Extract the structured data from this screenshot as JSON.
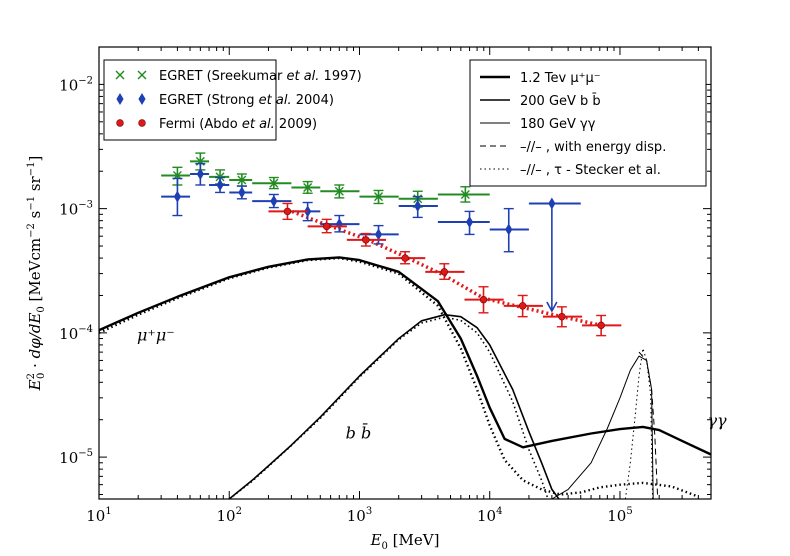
{
  "chart_data": {
    "type": "scatter",
    "title": "",
    "xlabel": "E₀ [MeV]",
    "ylabel": "E₀² · dφ/dE₀ [MeV cm⁻² s⁻¹ sr⁻¹]",
    "x_scale": "log",
    "y_scale": "log",
    "xlim": [
      10,
      500000
    ],
    "ylim": [
      4.6e-06,
      0.02
    ],
    "x_ticks": [
      {
        "value": 10,
        "base": "10",
        "exp": "1"
      },
      {
        "value": 100,
        "base": "10",
        "exp": "2"
      },
      {
        "value": 1000,
        "base": "10",
        "exp": "3"
      },
      {
        "value": 10000,
        "base": "10",
        "exp": "4"
      },
      {
        "value": 100000,
        "base": "10",
        "exp": "5"
      }
    ],
    "y_ticks": [
      {
        "value": 1e-05,
        "base": "10",
        "exp": "−5"
      },
      {
        "value": 0.0001,
        "base": "10",
        "exp": "−4"
      },
      {
        "value": 0.001,
        "base": "10",
        "exp": "−3"
      },
      {
        "value": 0.01,
        "base": "10",
        "exp": "−2"
      }
    ],
    "data_series": [
      {
        "name": "EGRET (Sreekumar et al. 1997)",
        "label_text": "EGRET (Sreekumar ",
        "label_em": "et al.",
        "label_tail": " 1997)",
        "color": "#228b22",
        "marker": "x",
        "points": [
          {
            "x": 40,
            "y": 0.00185,
            "xlo": 30,
            "xhi": 50,
            "ylo": 0.00155,
            "yhi": 0.00215
          },
          {
            "x": 60,
            "y": 0.0024,
            "xlo": 50,
            "xhi": 70,
            "ylo": 0.00205,
            "yhi": 0.0028
          },
          {
            "x": 85,
            "y": 0.0018,
            "xlo": 70,
            "xhi": 100,
            "ylo": 0.00158,
            "yhi": 0.00205
          },
          {
            "x": 125,
            "y": 0.0017,
            "xlo": 100,
            "xhi": 150,
            "ylo": 0.00152,
            "yhi": 0.0019
          },
          {
            "x": 220,
            "y": 0.0016,
            "xlo": 150,
            "xhi": 300,
            "ylo": 0.00145,
            "yhi": 0.00178
          },
          {
            "x": 400,
            "y": 0.00148,
            "xlo": 300,
            "xhi": 500,
            "ylo": 0.00133,
            "yhi": 0.00165
          },
          {
            "x": 700,
            "y": 0.00138,
            "xlo": 500,
            "xhi": 1000,
            "ylo": 0.00122,
            "yhi": 0.00155
          },
          {
            "x": 1400,
            "y": 0.00125,
            "xlo": 1000,
            "xhi": 2000,
            "ylo": 0.0011,
            "yhi": 0.0014
          },
          {
            "x": 2800,
            "y": 0.0012,
            "xlo": 2000,
            "xhi": 4000,
            "ylo": 0.00103,
            "yhi": 0.00138
          },
          {
            "x": 6500,
            "y": 0.0013,
            "xlo": 4000,
            "xhi": 10000,
            "ylo": 0.00113,
            "yhi": 0.0015
          }
        ]
      },
      {
        "name": "EGRET (Strong et al. 2004)",
        "label_text": "EGRET (Strong ",
        "label_em": "et al.",
        "label_tail": " 2004)",
        "color": "#1f3fb4",
        "marker": "diamond",
        "points": [
          {
            "x": 40,
            "y": 0.00125,
            "xlo": 30,
            "xhi": 50,
            "ylo": 0.00088,
            "yhi": 0.00175
          },
          {
            "x": 60,
            "y": 0.0019,
            "xlo": 50,
            "xhi": 70,
            "ylo": 0.00155,
            "yhi": 0.0023
          },
          {
            "x": 85,
            "y": 0.00155,
            "xlo": 70,
            "xhi": 100,
            "ylo": 0.00135,
            "yhi": 0.00178
          },
          {
            "x": 125,
            "y": 0.00135,
            "xlo": 100,
            "xhi": 150,
            "ylo": 0.0012,
            "yhi": 0.00152
          },
          {
            "x": 220,
            "y": 0.00115,
            "xlo": 150,
            "xhi": 300,
            "ylo": 0.00102,
            "yhi": 0.0013
          },
          {
            "x": 400,
            "y": 0.00095,
            "xlo": 300,
            "xhi": 500,
            "ylo": 0.0008,
            "yhi": 0.00112
          },
          {
            "x": 700,
            "y": 0.00075,
            "xlo": 500,
            "xhi": 1000,
            "ylo": 0.00065,
            "yhi": 0.00088
          },
          {
            "x": 1400,
            "y": 0.00062,
            "xlo": 1000,
            "xhi": 2000,
            "ylo": 0.00052,
            "yhi": 0.00073
          },
          {
            "x": 2800,
            "y": 0.00105,
            "xlo": 2000,
            "xhi": 4000,
            "ylo": 0.00085,
            "yhi": 0.00125
          },
          {
            "x": 7000,
            "y": 0.00078,
            "xlo": 4000,
            "xhi": 10000,
            "ylo": 0.00062,
            "yhi": 0.00095
          },
          {
            "x": 14000,
            "y": 0.00068,
            "xlo": 10000,
            "xhi": 20000,
            "ylo": 0.00045,
            "yhi": 0.001
          }
        ],
        "upper_limits": [
          {
            "x": 30000,
            "y": 0.0011,
            "xlo": 20000,
            "xhi": 50000,
            "arrow_to": 0.00015
          }
        ]
      },
      {
        "name": "Fermi (Abdo et al. 2009)",
        "label_text": "Fermi (Abdo ",
        "label_em": "et al.",
        "label_tail": " 2009)",
        "color": "#e01818",
        "marker": "circle",
        "points": [
          {
            "x": 280,
            "y": 0.00095,
            "xlo": 200,
            "xhi": 400,
            "ylo": 0.00082,
            "yhi": 0.0011
          },
          {
            "x": 560,
            "y": 0.00072,
            "xlo": 400,
            "xhi": 800,
            "ylo": 0.00064,
            "yhi": 0.00082
          },
          {
            "x": 1120,
            "y": 0.00056,
            "xlo": 800,
            "xhi": 1600,
            "ylo": 0.0005,
            "yhi": 0.00063
          },
          {
            "x": 2240,
            "y": 0.0004,
            "xlo": 1600,
            "xhi": 3200,
            "ylo": 0.00036,
            "yhi": 0.00045
          },
          {
            "x": 4480,
            "y": 0.00031,
            "xlo": 3200,
            "xhi": 6400,
            "ylo": 0.00027,
            "yhi": 0.00036
          },
          {
            "x": 8960,
            "y": 0.000185,
            "xlo": 6400,
            "xhi": 12800,
            "ylo": 0.000145,
            "yhi": 0.000235
          },
          {
            "x": 17900,
            "y": 0.000165,
            "xlo": 12800,
            "xhi": 25600,
            "ylo": 0.000135,
            "yhi": 0.0002
          },
          {
            "x": 35800,
            "y": 0.000135,
            "xlo": 25600,
            "xhi": 51200,
            "ylo": 0.000112,
            "yhi": 0.000162
          },
          {
            "x": 71700,
            "y": 0.000115,
            "xlo": 51200,
            "xhi": 102400,
            "ylo": 9.5e-05,
            "yhi": 0.000138
          }
        ]
      }
    ],
    "fermi_trend": {
      "color": "#e01818",
      "style": "dotted",
      "points": [
        [
          280,
          0.00098
        ],
        [
          560,
          0.00074
        ],
        [
          1120,
          0.00057
        ],
        [
          2240,
          0.00041
        ],
        [
          4480,
          0.00029
        ],
        [
          8960,
          0.00019
        ],
        [
          17900,
          0.00016
        ],
        [
          35800,
          0.000135
        ],
        [
          71700,
          0.000115
        ]
      ]
    },
    "model_curves": [
      {
        "name": "mu+mu-",
        "style": "solid",
        "color": "#000000",
        "weight": "thick",
        "points": [
          [
            10,
            0.000105
          ],
          [
            20,
            0.000145
          ],
          [
            40,
            0.000195
          ],
          [
            100,
            0.00028
          ],
          [
            200,
            0.00034
          ],
          [
            400,
            0.00039
          ],
          [
            700,
            0.000405
          ],
          [
            1000,
            0.000385
          ],
          [
            2000,
            0.00031
          ],
          [
            4000,
            0.00018
          ],
          [
            6000,
            9e-05
          ],
          [
            8000,
            4.5e-05
          ],
          [
            10000,
            2.5e-05
          ],
          [
            13000,
            1.4e-05
          ],
          [
            18000,
            1.2e-05
          ],
          [
            30000,
            1.35e-05
          ],
          [
            60000,
            1.55e-05
          ],
          [
            100000,
            1.68e-05
          ],
          [
            150000,
            1.75e-05
          ],
          [
            200000,
            1.65e-05
          ],
          [
            300000,
            1.35e-05
          ],
          [
            500000,
            1.05e-05
          ]
        ]
      },
      {
        "name": "mu+mu- (stecker)",
        "style": "dotted",
        "color": "#000000",
        "weight": "thick",
        "points": [
          [
            10,
            0.0001
          ],
          [
            20,
            0.00014
          ],
          [
            40,
            0.00019
          ],
          [
            100,
            0.000275
          ],
          [
            200,
            0.000335
          ],
          [
            400,
            0.000385
          ],
          [
            700,
            0.0004
          ],
          [
            1000,
            0.000375
          ],
          [
            2000,
            0.0003
          ],
          [
            4000,
            0.000165
          ],
          [
            6000,
            7.5e-05
          ],
          [
            8000,
            3.5e-05
          ],
          [
            10000,
            1.8e-05
          ],
          [
            13000,
            9.5e-06
          ],
          [
            18000,
            6.5e-06
          ],
          [
            25000,
            5.5e-06
          ],
          [
            35000,
            5e-06
          ],
          [
            50000,
            5.2e-06
          ],
          [
            70000,
            5.7e-06
          ],
          [
            100000,
            6e-06
          ],
          [
            150000,
            6.2e-06
          ],
          [
            250000,
            5.8e-06
          ],
          [
            400000,
            4.8e-06
          ]
        ]
      },
      {
        "name": "bb",
        "style": "solid",
        "color": "#000000",
        "weight": "medium",
        "points": [
          [
            100,
            4.6e-06
          ],
          [
            150,
            6.5e-06
          ],
          [
            200,
            8.5e-06
          ],
          [
            300,
            1.25e-05
          ],
          [
            500,
            2.1e-05
          ],
          [
            1000,
            4.5e-05
          ],
          [
            2000,
            9e-05
          ],
          [
            3000,
            0.000125
          ],
          [
            4500,
            0.00014
          ],
          [
            6000,
            0.000135
          ],
          [
            8000,
            0.00011
          ],
          [
            10000,
            8e-05
          ],
          [
            15000,
            3.5e-05
          ],
          [
            20000,
            1.6e-05
          ],
          [
            25000,
            9e-06
          ],
          [
            30000,
            5.5e-06
          ],
          [
            34000,
            4.6e-06
          ]
        ]
      },
      {
        "name": "bb (stecker)",
        "style": "dotted",
        "color": "#000000",
        "weight": "medium",
        "points": [
          [
            100,
            4.6e-06
          ],
          [
            150,
            6.4e-06
          ],
          [
            200,
            8.4e-06
          ],
          [
            300,
            1.24e-05
          ],
          [
            500,
            2.05e-05
          ],
          [
            1000,
            4.4e-05
          ],
          [
            2000,
            8.8e-05
          ],
          [
            3000,
            0.00012
          ],
          [
            4500,
            0.000134
          ],
          [
            6000,
            0.000126
          ],
          [
            8000,
            0.0001
          ],
          [
            10000,
            7e-05
          ],
          [
            15000,
            2.8e-05
          ],
          [
            20000,
            1.15e-05
          ],
          [
            25000,
            6.5e-06
          ],
          [
            28000,
            4.6e-06
          ]
        ]
      },
      {
        "name": "gammagamma",
        "style": "solid",
        "color": "#000000",
        "weight": "thin",
        "points": [
          [
            30000,
            4.6e-06
          ],
          [
            40000,
            5.5e-06
          ],
          [
            60000,
            9e-06
          ],
          [
            80000,
            1.7e-05
          ],
          [
            100000,
            3e-05
          ],
          [
            120000,
            5e-05
          ],
          [
            140000,
            6.5e-05
          ],
          [
            160000,
            6e-05
          ],
          [
            175000,
            3.5e-05
          ],
          [
            180000,
            4.6e-06
          ]
        ]
      },
      {
        "name": "gammagamma (energy disp.)",
        "style": "dashed",
        "color": "#000000",
        "weight": "thin",
        "points": [
          [
            140000,
            7e-05
          ],
          [
            160000,
            6e-05
          ],
          [
            175000,
            3.5e-05
          ],
          [
            185000,
            1.5e-05
          ],
          [
            195000,
            4.6e-06
          ]
        ]
      },
      {
        "name": "gammagamma (stecker)",
        "style": "dotted",
        "color": "#000000",
        "weight": "thin",
        "points": [
          [
            110000,
            4.6e-06
          ],
          [
            120000,
            9e-06
          ],
          [
            130000,
            2e-05
          ],
          [
            140000,
            4.5e-05
          ],
          [
            150000,
            7.5e-05
          ],
          [
            160000,
            6e-05
          ],
          [
            172000,
            3.2e-05
          ],
          [
            178000,
            4.6e-06
          ]
        ]
      }
    ],
    "annotations": {
      "mumu": {
        "x": 10,
        "y": 9.5e-05,
        "text": "μ⁺μ⁻"
      },
      "bb": {
        "x": 400,
        "y": 1.55e-05,
        "text": "b b̄"
      },
      "gg": {
        "x": 240000,
        "y": 1.95e-05,
        "text": "γγ"
      }
    },
    "legend_left": {
      "position": "top-left"
    },
    "legend_right": {
      "position": "top-right",
      "entries": [
        {
          "label": "1.2 Tev μ⁺μ⁻",
          "style": "solid",
          "weight": "thick"
        },
        {
          "label": "200 GeV b b̄",
          "style": "solid",
          "weight": "medium"
        },
        {
          "label": "180 GeV γγ",
          "style": "solid",
          "weight": "thin"
        },
        {
          "label": "–//– , with energy disp.",
          "style": "dashed",
          "weight": "thin"
        },
        {
          "label": "–//– , τ - Stecker et al.",
          "style": "dotted",
          "weight": "thin"
        }
      ]
    }
  }
}
